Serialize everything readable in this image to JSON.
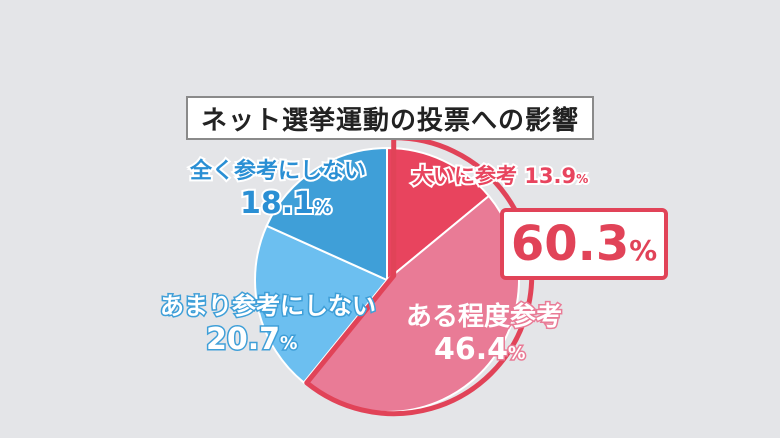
{
  "chart_data": {
    "type": "pie",
    "title": "ネット選挙運動の投票への影響",
    "slices": [
      {
        "label": "大いに参考",
        "value": 13.9,
        "color": "#e8445e"
      },
      {
        "label": "ある程度参考",
        "value": 46.4,
        "color": "#e97b96"
      },
      {
        "label": "あまり参考にしない",
        "value": 20.7,
        "color": "#6cbff0"
      },
      {
        "label": "全く参考にしない",
        "value": 18.1,
        "color": "#3f9fd8"
      }
    ],
    "highlight": {
      "value": "60.3",
      "unit": "%",
      "color": "#e14358"
    }
  },
  "labels": {
    "s0_name": "大いに参考",
    "s0_val": "13.9",
    "s0_unit": "%",
    "s1_name": "ある程度参考",
    "s1_val": "46.4",
    "s1_unit": "%",
    "s2_name": "あまり参考にしない",
    "s2_val": "20.7",
    "s2_unit": "%",
    "s3_name": "全く参考にしない",
    "s3_val": "18.1",
    "s3_unit": "%"
  }
}
